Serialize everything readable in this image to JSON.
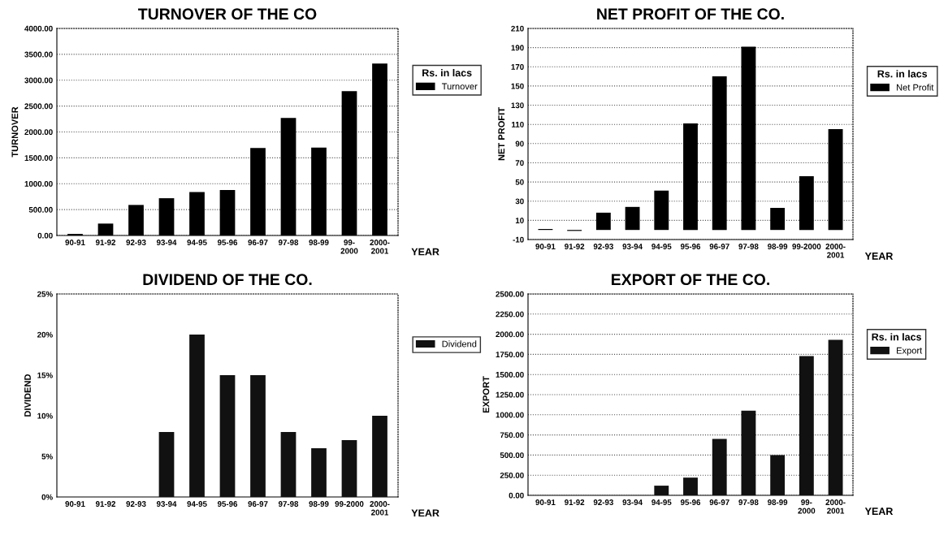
{
  "chart_data": [
    {
      "type": "bar",
      "title": "TURNOVER OF THE CO",
      "xlabel": "YEAR",
      "ylabel": "TURNOVER",
      "legend_title": "Rs. in lacs",
      "legend": "right",
      "grid": "y",
      "categories": [
        "90-91",
        "91-92",
        "92-93",
        "93-94",
        "94-95",
        "95-96",
        "96-97",
        "97-98",
        "98-99",
        "99-\n2000",
        "2000-\n2001"
      ],
      "series": [
        {
          "name": "Turnover",
          "color": "#000000",
          "values": [
            30,
            230,
            590,
            720,
            840,
            880,
            1690,
            2270,
            1700,
            2790,
            3320
          ]
        }
      ],
      "ylim": [
        0,
        4000
      ],
      "yticks": [
        {
          "value": 0,
          "label": "0.00"
        },
        {
          "value": 500,
          "label": "500.00"
        },
        {
          "value": 1000,
          "label": "1000.00"
        },
        {
          "value": 1500,
          "label": "1500.00"
        },
        {
          "value": 2000,
          "label": "2000.00"
        },
        {
          "value": 2500,
          "label": "2500.00"
        },
        {
          "value": 3000,
          "label": "3000.00"
        },
        {
          "value": 3500,
          "label": "3500.00"
        },
        {
          "value": 4000,
          "label": "4000.00"
        }
      ]
    },
    {
      "type": "bar",
      "title": "NET PROFIT OF THE CO.",
      "xlabel": "YEAR",
      "ylabel": "NET PROFIT",
      "legend_title": "Rs. in lacs",
      "legend": "right",
      "grid": "y",
      "categories": [
        "90-91",
        "91-92",
        "92-93",
        "93-94",
        "94-95",
        "95-96",
        "96-97",
        "97-98",
        "98-99",
        "99-2000",
        "2000-\n2001"
      ],
      "series": [
        {
          "name": "Net Profit",
          "color": "#000000",
          "values": [
            1,
            -1,
            18,
            24,
            41,
            111,
            160,
            191,
            23,
            56,
            105
          ]
        }
      ],
      "ylim": [
        -10,
        210
      ],
      "yticks": [
        -10,
        10,
        30,
        50,
        70,
        90,
        110,
        130,
        150,
        170,
        190,
        210
      ]
    },
    {
      "type": "bar",
      "title": "DIVIDEND OF THE CO.",
      "xlabel": "YEAR",
      "ylabel": "DIVIDEND",
      "legend": "right",
      "grid": false,
      "categories": [
        "90-91",
        "91-92",
        "92-93",
        "93-94",
        "94-95",
        "95-96",
        "96-97",
        "97-98",
        "98-99",
        "99-2000",
        "2000-\n2001"
      ],
      "series": [
        {
          "name": "Dividend",
          "color": "#111111",
          "values": [
            0,
            0,
            0,
            8,
            20,
            15,
            15,
            8,
            6,
            7,
            10
          ]
        }
      ],
      "ylim": [
        0,
        25
      ],
      "yticks": [
        {
          "value": 0,
          "label": "0%"
        },
        {
          "value": 5,
          "label": "5%"
        },
        {
          "value": 10,
          "label": "10%"
        },
        {
          "value": 15,
          "label": "15%"
        },
        {
          "value": 20,
          "label": "20%"
        },
        {
          "value": 25,
          "label": "25%"
        }
      ]
    },
    {
      "type": "bar",
      "title": "EXPORT OF THE CO.",
      "xlabel": "YEAR",
      "ylabel": "EXPORT",
      "legend_title": "Rs. in lacs",
      "legend": "right",
      "grid": "y",
      "categories": [
        "90-91",
        "91-92",
        "92-93",
        "93-94",
        "94-95",
        "95-96",
        "96-97",
        "97-98",
        "98-99",
        "99-\n2000",
        "2000-\n2001"
      ],
      "series": [
        {
          "name": "Export",
          "color": "#111111",
          "values": [
            0,
            0,
            0,
            0,
            120,
            220,
            700,
            1050,
            500,
            1730,
            1930
          ]
        }
      ],
      "ylim": [
        0,
        2500
      ],
      "yticks": [
        {
          "value": 0,
          "label": "0.00"
        },
        {
          "value": 250,
          "label": "250.00"
        },
        {
          "value": 500,
          "label": "500.00"
        },
        {
          "value": 750,
          "label": "750.00"
        },
        {
          "value": 1000,
          "label": "1000.00"
        },
        {
          "value": 1250,
          "label": "1250.00"
        },
        {
          "value": 1500,
          "label": "1500.00"
        },
        {
          "value": 1750,
          "label": "1750.00"
        },
        {
          "value": 2000,
          "label": "2000.00"
        },
        {
          "value": 2250,
          "label": "2250.00"
        },
        {
          "value": 2500,
          "label": "2500.00"
        }
      ]
    }
  ]
}
